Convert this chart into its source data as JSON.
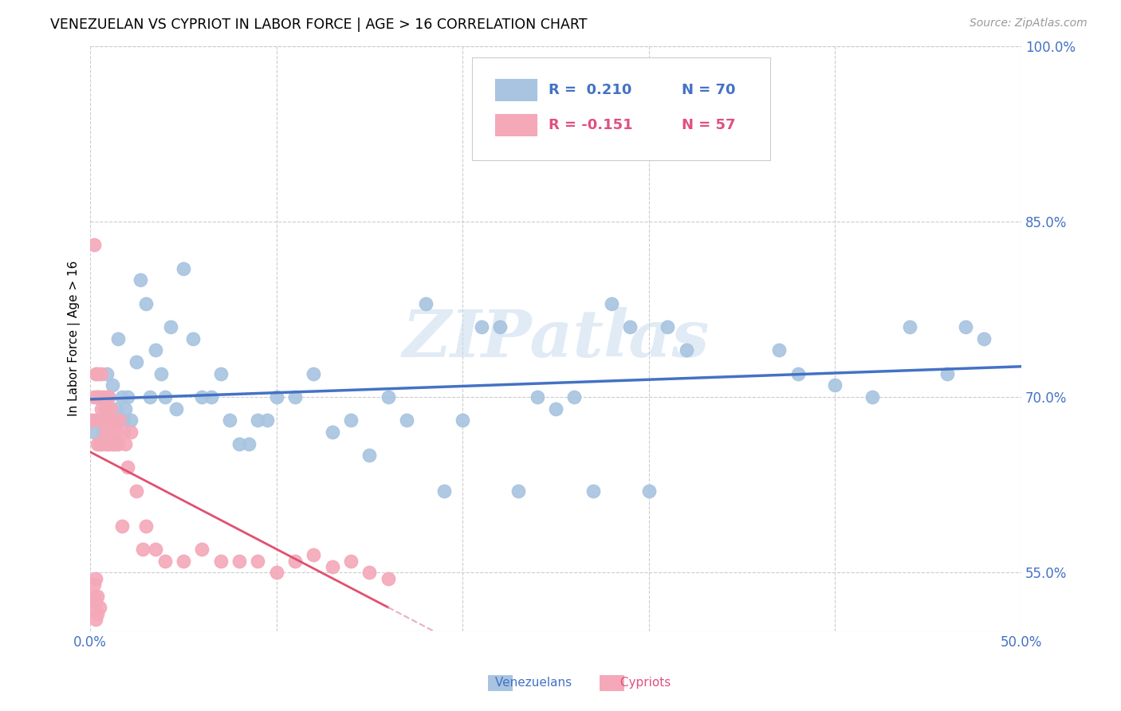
{
  "title": "VENEZUELAN VS CYPRIOT IN LABOR FORCE | AGE > 16 CORRELATION CHART",
  "source": "Source: ZipAtlas.com",
  "ylabel": "In Labor Force | Age > 16",
  "xlim": [
    0.0,
    0.5
  ],
  "ylim": [
    0.5,
    1.0
  ],
  "xtick_values": [
    0.0,
    0.1,
    0.2,
    0.3,
    0.4,
    0.5
  ],
  "xtick_labels": [
    "0.0%",
    "",
    "",
    "",
    "",
    "50.0%"
  ],
  "ytick_values": [
    0.55,
    0.7,
    0.85,
    1.0
  ],
  "ytick_labels": [
    "55.0%",
    "70.0%",
    "85.0%",
    "100.0%"
  ],
  "venezuelan_color": "#a8c4e0",
  "cypriot_color": "#f4a8b8",
  "trend_blue_color": "#4472c4",
  "trend_pink_solid_color": "#e05070",
  "trend_pink_dash_color": "#e8b0c0",
  "watermark": "ZIPatlas",
  "tick_color": "#4472c4",
  "background": "#ffffff",
  "venezuelan_x": [
    0.002,
    0.003,
    0.004,
    0.005,
    0.006,
    0.007,
    0.008,
    0.009,
    0.01,
    0.011,
    0.012,
    0.013,
    0.014,
    0.015,
    0.016,
    0.017,
    0.018,
    0.019,
    0.02,
    0.022,
    0.025,
    0.027,
    0.03,
    0.032,
    0.035,
    0.038,
    0.04,
    0.043,
    0.046,
    0.05,
    0.055,
    0.06,
    0.065,
    0.07,
    0.075,
    0.08,
    0.085,
    0.09,
    0.095,
    0.1,
    0.11,
    0.12,
    0.13,
    0.14,
    0.15,
    0.16,
    0.17,
    0.18,
    0.19,
    0.2,
    0.21,
    0.22,
    0.23,
    0.24,
    0.25,
    0.26,
    0.27,
    0.28,
    0.29,
    0.3,
    0.31,
    0.32,
    0.37,
    0.38,
    0.4,
    0.42,
    0.44,
    0.46,
    0.47,
    0.48
  ],
  "venezuelan_y": [
    0.67,
    0.68,
    0.7,
    0.66,
    0.68,
    0.67,
    0.69,
    0.72,
    0.7,
    0.68,
    0.71,
    0.66,
    0.69,
    0.75,
    0.68,
    0.7,
    0.68,
    0.69,
    0.7,
    0.68,
    0.73,
    0.8,
    0.78,
    0.7,
    0.74,
    0.72,
    0.7,
    0.76,
    0.69,
    0.81,
    0.75,
    0.7,
    0.7,
    0.72,
    0.68,
    0.66,
    0.66,
    0.68,
    0.68,
    0.7,
    0.7,
    0.72,
    0.67,
    0.68,
    0.65,
    0.7,
    0.68,
    0.78,
    0.62,
    0.68,
    0.76,
    0.76,
    0.62,
    0.7,
    0.69,
    0.7,
    0.62,
    0.78,
    0.76,
    0.62,
    0.76,
    0.74,
    0.74,
    0.72,
    0.71,
    0.7,
    0.76,
    0.72,
    0.76,
    0.75
  ],
  "cypriot_x": [
    0.001,
    0.002,
    0.002,
    0.003,
    0.003,
    0.004,
    0.004,
    0.004,
    0.005,
    0.005,
    0.005,
    0.006,
    0.006,
    0.006,
    0.007,
    0.007,
    0.007,
    0.008,
    0.008,
    0.008,
    0.009,
    0.009,
    0.01,
    0.01,
    0.01,
    0.011,
    0.011,
    0.012,
    0.012,
    0.013,
    0.013,
    0.014,
    0.014,
    0.015,
    0.016,
    0.017,
    0.018,
    0.019,
    0.02,
    0.022,
    0.025,
    0.028,
    0.03,
    0.035,
    0.04,
    0.05,
    0.06,
    0.07,
    0.08,
    0.09,
    0.1,
    0.11,
    0.12,
    0.13,
    0.14,
    0.15,
    0.16
  ],
  "cypriot_y": [
    0.68,
    0.83,
    0.7,
    0.72,
    0.68,
    0.7,
    0.66,
    0.72,
    0.68,
    0.7,
    0.66,
    0.69,
    0.72,
    0.68,
    0.7,
    0.66,
    0.68,
    0.7,
    0.67,
    0.69,
    0.68,
    0.66,
    0.7,
    0.68,
    0.66,
    0.67,
    0.69,
    0.66,
    0.68,
    0.67,
    0.68,
    0.66,
    0.67,
    0.66,
    0.68,
    0.59,
    0.67,
    0.66,
    0.64,
    0.67,
    0.62,
    0.57,
    0.59,
    0.57,
    0.56,
    0.56,
    0.57,
    0.56,
    0.56,
    0.56,
    0.55,
    0.56,
    0.565,
    0.555,
    0.56,
    0.55,
    0.545
  ],
  "cypriot_extra_low_x": [
    0.001,
    0.002,
    0.002,
    0.003,
    0.003,
    0.003,
    0.004,
    0.004,
    0.005
  ],
  "cypriot_extra_low_y": [
    0.52,
    0.53,
    0.54,
    0.51,
    0.525,
    0.545,
    0.515,
    0.53,
    0.52
  ]
}
